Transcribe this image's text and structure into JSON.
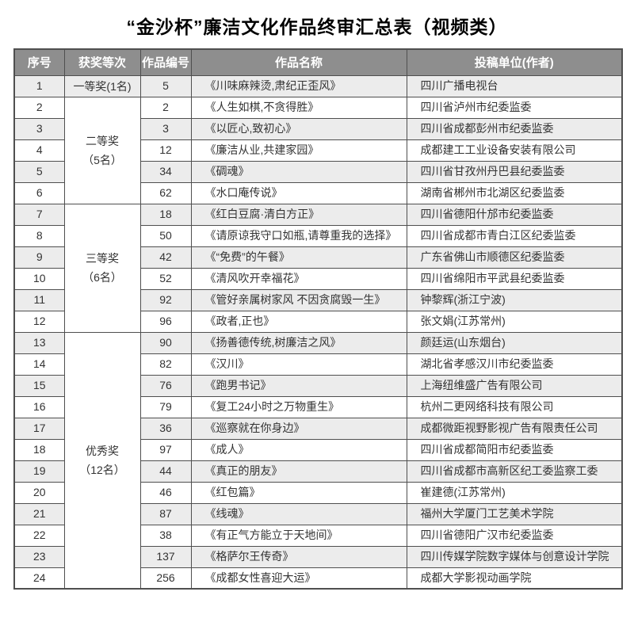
{
  "title": "“金沙杯”廉洁文化作品终审汇总表（视频类）",
  "colors": {
    "header_bg": "#8e8e8e",
    "header_text": "#ffffff",
    "row_stripe": "#ececec",
    "border": "#4f4f4f",
    "body_text": "#333333"
  },
  "table": {
    "headers": [
      {
        "key": "serial",
        "label": "序号"
      },
      {
        "key": "award-level",
        "label": "获奖等次"
      },
      {
        "key": "work-number",
        "label": "作品编号"
      },
      {
        "key": "work-title",
        "label": "作品名称"
      },
      {
        "key": "unit",
        "label": "投稿单位(作者)"
      }
    ],
    "award_groups": [
      {
        "start": 1,
        "span": 1,
        "lines": [
          "一等奖(1名)"
        ]
      },
      {
        "start": 2,
        "span": 5,
        "lines": [
          "二等奖",
          "（5名）"
        ]
      },
      {
        "start": 7,
        "span": 6,
        "lines": [
          "三等奖",
          "（6名）"
        ]
      },
      {
        "start": 13,
        "span": 12,
        "lines": [
          "优秀奖",
          "（12名）"
        ]
      }
    ],
    "rows": [
      {
        "no": "1",
        "code": "5",
        "title": "《川味麻辣烫,肃纪正歪风》",
        "unit": "四川广播电视台"
      },
      {
        "no": "2",
        "code": "2",
        "title": "《人生如棋,不贪得胜》",
        "unit": "四川省泸州市纪委监委"
      },
      {
        "no": "3",
        "code": "3",
        "title": "《以匠心,致初心》",
        "unit": "四川省成都彭州市纪委监委"
      },
      {
        "no": "4",
        "code": "12",
        "title": "《廉洁从业,共建家园》",
        "unit": "成都建工工业设备安装有限公司"
      },
      {
        "no": "5",
        "code": "34",
        "title": "《碉魂》",
        "unit": "四川省甘孜州丹巴县纪委监委"
      },
      {
        "no": "6",
        "code": "62",
        "title": "《水口庵传说》",
        "unit": "湖南省郴州市北湖区纪委监委"
      },
      {
        "no": "7",
        "code": "18",
        "title": "《红白豆腐·清白方正》",
        "unit": "四川省德阳什邡市纪委监委"
      },
      {
        "no": "8",
        "code": "50",
        "title": "《请原谅我守口如瓶,请尊重我的选择》",
        "unit": "四川省成都市青白江区纪委监委"
      },
      {
        "no": "9",
        "code": "42",
        "title": "《“免费”的午餐》",
        "unit": "广东省佛山市顺德区纪委监委"
      },
      {
        "no": "10",
        "code": "52",
        "title": "《清风吹开幸福花》",
        "unit": "四川省绵阳市平武县纪委监委"
      },
      {
        "no": "11",
        "code": "92",
        "title": "《管好亲属树家风 不因贪腐毁一生》",
        "unit": "钟黎辉(浙江宁波)"
      },
      {
        "no": "12",
        "code": "96",
        "title": "《政者,正也》",
        "unit": "张文娟(江苏常州)"
      },
      {
        "no": "13",
        "code": "90",
        "title": "《扬善德传统,树廉洁之风》",
        "unit": "颜廷运(山东烟台)"
      },
      {
        "no": "14",
        "code": "82",
        "title": "《汉川》",
        "unit": "湖北省孝感汉川市纪委监委"
      },
      {
        "no": "15",
        "code": "76",
        "title": "《跑男书记》",
        "unit": "上海纽维盛广告有限公司"
      },
      {
        "no": "16",
        "code": "79",
        "title": "《复工24小时之万物重生》",
        "unit": "杭州二更网络科技有限公司"
      },
      {
        "no": "17",
        "code": "36",
        "title": "《巡察就在你身边》",
        "unit": "成都微距视野影视广告有限责任公司"
      },
      {
        "no": "18",
        "code": "97",
        "title": "《成人》",
        "unit": "四川省成都简阳市纪委监委"
      },
      {
        "no": "19",
        "code": "44",
        "title": "《真正的朋友》",
        "unit": "四川省成都市高新区纪工委监察工委"
      },
      {
        "no": "20",
        "code": "46",
        "title": "《红包篇》",
        "unit": "崔建德(江苏常州)"
      },
      {
        "no": "21",
        "code": "87",
        "title": "《线魂》",
        "unit": "福州大学厦门工艺美术学院"
      },
      {
        "no": "22",
        "code": "38",
        "title": "《有正气方能立于天地间》",
        "unit": "四川省德阳广汉市纪委监委"
      },
      {
        "no": "23",
        "code": "137",
        "title": "《格萨尔王传奇》",
        "unit": "四川传媒学院数字媒体与创意设计学院"
      },
      {
        "no": "24",
        "code": "256",
        "title": "《成都女性喜迎大运》",
        "unit": "成都大学影视动画学院"
      }
    ]
  }
}
